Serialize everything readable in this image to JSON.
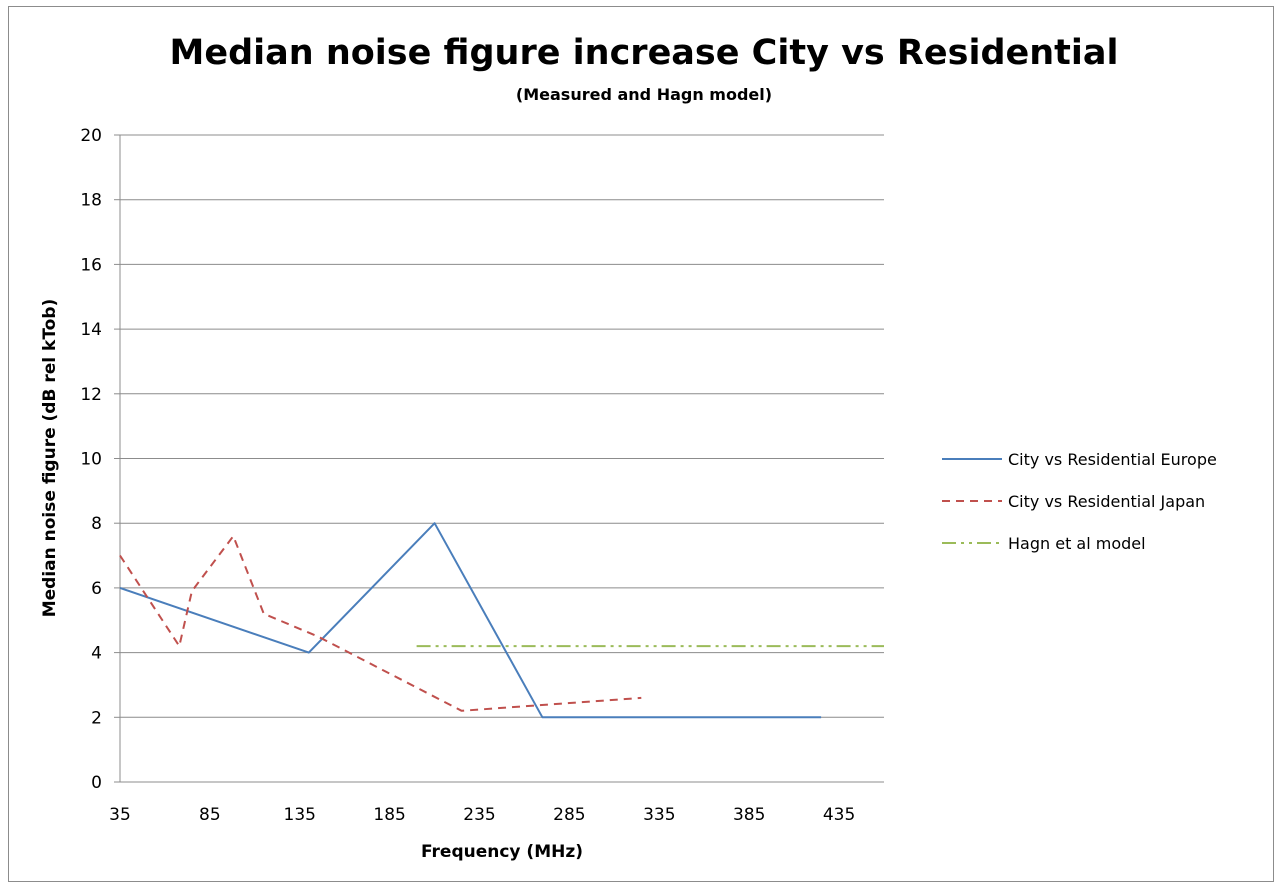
{
  "chart_data": {
    "type": "line",
    "title": "Median noise figure increase City vs Residential",
    "subtitle": "(Measured and Hagn model)",
    "xlabel": "Frequency (MHz)",
    "ylabel": "Median noise figure (dB rel kTob)",
    "xlim": [
      35,
      460
    ],
    "ylim": [
      0,
      20
    ],
    "x_ticks": [
      35,
      85,
      135,
      185,
      235,
      285,
      335,
      385,
      435
    ],
    "y_ticks": [
      0,
      2,
      4,
      6,
      8,
      10,
      12,
      14,
      16,
      18,
      20
    ],
    "grid": "horizontal",
    "legend_position": "right",
    "series": [
      {
        "name": "City vs Residential Europe",
        "color": "#4a7ebb",
        "dash": "solid",
        "x": [
          35,
          140,
          210,
          270,
          425
        ],
        "y": [
          6,
          4,
          8,
          2,
          2
        ]
      },
      {
        "name": "City vs Residential Japan",
        "color": "#c0504d",
        "dash": "dashed",
        "x": [
          35,
          68,
          75,
          98,
          115,
          145,
          225,
          325
        ],
        "y": [
          7,
          4.2,
          5.9,
          7.6,
          5.2,
          4.5,
          2.2,
          2.6
        ]
      },
      {
        "name": "Hagn et al model",
        "color": "#9bbb59",
        "dash": "dashdot",
        "x": [
          200,
          460
        ],
        "y": [
          4.2,
          4.2
        ]
      }
    ]
  }
}
